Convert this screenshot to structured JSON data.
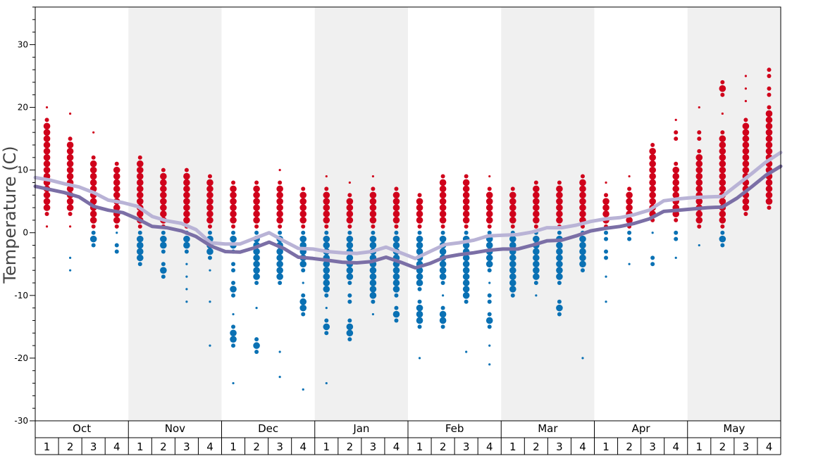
{
  "chart_data": {
    "type": "scatter",
    "title": "",
    "xlabel": "",
    "ylabel": "Temperature (C)",
    "ylim": [
      -30,
      36
    ],
    "yticks": [
      -30,
      -20,
      -10,
      0,
      10,
      20,
      30
    ],
    "ytick_labels": [
      "-30",
      "-20",
      "-10",
      "0",
      "10",
      "20",
      "30"
    ],
    "months": [
      "Oct",
      "Nov",
      "Dec",
      "Jan",
      "Feb",
      "Mar",
      "Apr",
      "May"
    ],
    "weeks": [
      "1",
      "2",
      "3",
      "4"
    ],
    "shaded_months": [
      "Nov",
      "Jan",
      "Mar",
      "May"
    ],
    "colors": {
      "warm": "#d0021b",
      "cold": "#0a71b4",
      "shade": "#f0f0f0",
      "line_dark": "#7b6fa6",
      "line_light": "#b9b3d6"
    },
    "series": [
      {
        "values": [
          7.4,
          6.9,
          6.4,
          5.7,
          4.2,
          3.6,
          3.2,
          2.2,
          1.0,
          0.8,
          0.3,
          -0.6,
          -2.1,
          -3.0,
          -3.1,
          -2.4,
          -1.5,
          -2.5,
          -3.9,
          -4.1,
          -4.4,
          -4.7,
          -4.8,
          -4.6,
          -3.9,
          -4.7,
          -5.6,
          -4.9,
          -3.9,
          -3.5,
          -3.2,
          -2.8,
          -2.6,
          -2.6,
          -2.0,
          -1.3,
          -1.2,
          -0.5,
          0.3,
          0.7,
          1.0,
          1.5,
          2.2,
          3.4,
          3.6,
          3.8,
          4.0,
          4.1,
          5.5,
          7.3,
          9.2,
          10.6
        ]
      },
      {
        "values": [
          8.8,
          8.4,
          7.8,
          7.3,
          6.4,
          5.2,
          4.8,
          4.2,
          2.6,
          1.9,
          1.5,
          0.5,
          -1.6,
          -1.8,
          -1.8,
          -0.9,
          0.0,
          -1.3,
          -2.5,
          -2.6,
          -3.0,
          -3.2,
          -3.3,
          -3.0,
          -2.3,
          -3.2,
          -4.1,
          -3.0,
          -1.9,
          -1.6,
          -1.2,
          -0.5,
          -0.4,
          -0.3,
          0.1,
          0.8,
          0.8,
          1.2,
          1.8,
          2.2,
          2.4,
          2.9,
          3.6,
          5.1,
          5.4,
          5.6,
          5.7,
          5.8,
          7.6,
          9.4,
          11.3,
          12.8
        ]
      }
    ],
    "columns": [
      {
        "warm": [
          20,
          18,
          17,
          16,
          15,
          14,
          13,
          12,
          11,
          10,
          9,
          8,
          7,
          6,
          5,
          4,
          3,
          1
        ],
        "cold": []
      },
      {
        "warm": [
          19,
          15,
          14,
          13,
          12,
          11,
          10,
          9,
          8,
          7,
          6,
          5,
          4,
          3,
          1
        ],
        "cold": [
          -4,
          -6
        ]
      },
      {
        "warm": [
          16,
          12,
          11,
          10,
          9,
          8,
          7,
          6,
          5,
          4,
          3,
          2,
          1
        ],
        "cold": [
          0,
          -1,
          -2
        ]
      },
      {
        "warm": [
          11,
          10,
          9,
          8,
          7,
          6,
          5,
          4,
          3,
          2,
          1
        ],
        "cold": [
          0,
          -2,
          -3
        ]
      },
      {
        "warm": [
          12,
          11,
          10,
          9,
          8,
          7,
          6,
          5,
          4,
          3,
          2,
          1
        ],
        "cold": [
          0,
          -1,
          -2,
          -3,
          -4,
          -5
        ]
      },
      {
        "warm": [
          10,
          9,
          8,
          7,
          6,
          5,
          4,
          3,
          2,
          1
        ],
        "cold": [
          0,
          -1,
          -2,
          -3,
          -5,
          -6,
          -7
        ]
      },
      {
        "warm": [
          10,
          9,
          8,
          7,
          6,
          5,
          4,
          3,
          2,
          1
        ],
        "cold": [
          0,
          -1,
          -2,
          -3,
          -5,
          -7,
          -9,
          -11
        ]
      },
      {
        "warm": [
          9,
          8,
          7,
          6,
          5,
          4,
          3,
          2,
          1
        ],
        "cold": [
          0,
          -1,
          -2,
          -3,
          -4,
          -6,
          -11,
          -18
        ]
      },
      {
        "warm": [
          8,
          7,
          6,
          5,
          4,
          3,
          2,
          1
        ],
        "cold": [
          0,
          -1,
          -2,
          -3,
          -5,
          -6,
          -8,
          -9,
          -10,
          -13,
          -15,
          -16,
          -17,
          -18,
          -24
        ]
      },
      {
        "warm": [
          8,
          7,
          6,
          5,
          4,
          3,
          2,
          1
        ],
        "cold": [
          0,
          -1,
          -2,
          -3,
          -4,
          -5,
          -6,
          -7,
          -8,
          -12,
          -17,
          -18,
          -19
        ]
      },
      {
        "warm": [
          10,
          8,
          7,
          6,
          5,
          4,
          3,
          2,
          1
        ],
        "cold": [
          0,
          -1,
          -2,
          -3,
          -4,
          -5,
          -6,
          -7,
          -8,
          -19,
          -23
        ]
      },
      {
        "warm": [
          7,
          6,
          5,
          4,
          3,
          2,
          1
        ],
        "cold": [
          0,
          -1,
          -2,
          -3,
          -4,
          -5,
          -6,
          -8,
          -10,
          -11,
          -12,
          -13,
          -25
        ]
      },
      {
        "warm": [
          9,
          7,
          6,
          5,
          4,
          3,
          2,
          1
        ],
        "cold": [
          0,
          -1,
          -2,
          -3,
          -4,
          -5,
          -6,
          -7,
          -8,
          -9,
          -10,
          -12,
          -14,
          -15,
          -16,
          -24
        ]
      },
      {
        "warm": [
          8,
          6,
          5,
          4,
          3,
          2,
          1
        ],
        "cold": [
          0,
          -1,
          -2,
          -3,
          -4,
          -5,
          -6,
          -7,
          -8,
          -10,
          -11,
          -14,
          -15,
          -16,
          -17
        ]
      },
      {
        "warm": [
          9,
          7,
          6,
          5,
          4,
          3,
          2,
          1
        ],
        "cold": [
          0,
          -1,
          -2,
          -3,
          -4,
          -5,
          -6,
          -7,
          -8,
          -9,
          -10,
          -11,
          -13
        ]
      },
      {
        "warm": [
          7,
          6,
          5,
          4,
          3,
          2,
          1
        ],
        "cold": [
          0,
          -1,
          -2,
          -3,
          -4,
          -5,
          -6,
          -7,
          -8,
          -9,
          -10,
          -12,
          -13,
          -14
        ]
      },
      {
        "warm": [
          6,
          5,
          4,
          3,
          2,
          1
        ],
        "cold": [
          0,
          -1,
          -2,
          -3,
          -4,
          -5,
          -6,
          -7,
          -8,
          -9,
          -11,
          -12,
          -13,
          -14,
          -15,
          -20
        ]
      },
      {
        "warm": [
          9,
          8,
          7,
          6,
          5,
          4,
          3,
          2,
          1
        ],
        "cold": [
          0,
          -1,
          -2,
          -3,
          -4,
          -5,
          -6,
          -7,
          -8,
          -10,
          -12,
          -13,
          -14,
          -15
        ]
      },
      {
        "warm": [
          9,
          8,
          7,
          6,
          5,
          4,
          3,
          2,
          1
        ],
        "cold": [
          0,
          -1,
          -2,
          -3,
          -4,
          -5,
          -6,
          -7,
          -8,
          -9,
          -10,
          -11,
          -19
        ]
      },
      {
        "warm": [
          9,
          7,
          6,
          5,
          4,
          3,
          2,
          1
        ],
        "cold": [
          0,
          -1,
          -2,
          -3,
          -4,
          -5,
          -6,
          -8,
          -10,
          -11,
          -13,
          -14,
          -15,
          -18,
          -21
        ]
      },
      {
        "warm": [
          7,
          6,
          5,
          4,
          3,
          2,
          1
        ],
        "cold": [
          0,
          -1,
          -2,
          -3,
          -4,
          -5,
          -6,
          -7,
          -8,
          -9,
          -10
        ]
      },
      {
        "warm": [
          8,
          7,
          6,
          5,
          4,
          3,
          2,
          1
        ],
        "cold": [
          0,
          -1,
          -2,
          -3,
          -4,
          -5,
          -6,
          -7,
          -8,
          -10
        ]
      },
      {
        "warm": [
          8,
          7,
          6,
          5,
          4,
          3,
          2,
          1
        ],
        "cold": [
          0,
          -1,
          -2,
          -3,
          -4,
          -5,
          -6,
          -7,
          -8,
          -11,
          -12,
          -13
        ]
      },
      {
        "warm": [
          9,
          8,
          7,
          6,
          5,
          4,
          3,
          2,
          1
        ],
        "cold": [
          0,
          -1,
          -2,
          -3,
          -4,
          -5,
          -6,
          -20
        ]
      },
      {
        "warm": [
          8,
          6,
          5,
          4,
          3,
          2,
          1
        ],
        "cold": [
          0,
          -1,
          -3,
          -4,
          -7,
          -11
        ]
      },
      {
        "warm": [
          9,
          7,
          6,
          5,
          4,
          3,
          2,
          1
        ],
        "cold": [
          0,
          -1,
          -5
        ]
      },
      {
        "warm": [
          14,
          13,
          12,
          11,
          10,
          9,
          8,
          7,
          6,
          5,
          4,
          3,
          2
        ],
        "cold": [
          0,
          -4,
          -5
        ]
      },
      {
        "warm": [
          18,
          16,
          15,
          11,
          10,
          9,
          8,
          7,
          6,
          5,
          4,
          3,
          2
        ],
        "cold": [
          0,
          -1,
          -4
        ]
      },
      {
        "warm": [
          20,
          16,
          15,
          13,
          12,
          11,
          10,
          9,
          8,
          7,
          6,
          5,
          4,
          3,
          2,
          1
        ],
        "cold": [
          -2
        ]
      },
      {
        "warm": [
          24,
          23,
          22,
          19,
          16,
          15,
          14,
          13,
          12,
          11,
          10,
          9,
          8,
          7,
          6,
          5,
          4,
          3,
          2,
          1
        ],
        "cold": [
          0,
          -1,
          -2
        ]
      },
      {
        "warm": [
          25,
          23,
          21,
          18,
          17,
          16,
          15,
          14,
          13,
          12,
          11,
          10,
          9,
          8,
          7,
          6,
          5,
          4,
          3
        ],
        "cold": []
      },
      {
        "warm": [
          26,
          25,
          23,
          22,
          20,
          19,
          18,
          17,
          16,
          15,
          14,
          13,
          12,
          11,
          10,
          9,
          8,
          7,
          6,
          5,
          4
        ],
        "cold": []
      }
    ]
  }
}
